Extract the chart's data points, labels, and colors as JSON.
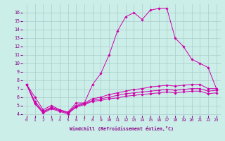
{
  "xlabel": "Windchill (Refroidissement éolien,°C)",
  "bg_color": "#cceee8",
  "grid_color": "#aacccc",
  "line_color": "#cc00aa",
  "hours": [
    0,
    1,
    2,
    3,
    4,
    5,
    6,
    7,
    8,
    9,
    10,
    11,
    12,
    13,
    14,
    15,
    16,
    17,
    18,
    19,
    20,
    21,
    22,
    23
  ],
  "temp": [
    7.5,
    6.0,
    4.5,
    5.0,
    4.5,
    4.2,
    5.3,
    5.3,
    7.5,
    8.8,
    11.0,
    13.8,
    15.5,
    16.0,
    15.2,
    16.3,
    16.5,
    16.5,
    13.0,
    12.0,
    10.5,
    10.0,
    9.5,
    7.0
  ],
  "wc2": [
    7.5,
    5.5,
    4.3,
    4.8,
    4.5,
    4.2,
    5.0,
    5.3,
    5.8,
    6.0,
    6.3,
    6.5,
    6.7,
    6.9,
    7.0,
    7.2,
    7.3,
    7.4,
    7.3,
    7.4,
    7.5,
    7.5,
    7.0,
    7.0
  ],
  "wc3": [
    7.5,
    5.3,
    4.2,
    4.7,
    4.4,
    4.1,
    4.9,
    5.2,
    5.6,
    5.8,
    6.0,
    6.2,
    6.4,
    6.5,
    6.6,
    6.7,
    6.8,
    6.9,
    6.8,
    6.9,
    7.0,
    7.0,
    6.7,
    6.8
  ],
  "wc4": [
    7.5,
    5.2,
    4.1,
    4.6,
    4.3,
    4.0,
    4.8,
    5.1,
    5.5,
    5.6,
    5.8,
    5.9,
    6.1,
    6.2,
    6.3,
    6.4,
    6.5,
    6.6,
    6.5,
    6.6,
    6.7,
    6.7,
    6.4,
    6.5
  ],
  "ylim": [
    3.8,
    17.0
  ],
  "xlim": [
    -0.5,
    23.5
  ],
  "yticks": [
    4,
    5,
    6,
    7,
    8,
    9,
    10,
    11,
    12,
    13,
    14,
    15,
    16
  ],
  "xticks": [
    0,
    1,
    2,
    3,
    4,
    5,
    6,
    7,
    8,
    9,
    10,
    11,
    12,
    13,
    14,
    15,
    16,
    17,
    18,
    19,
    20,
    21,
    22,
    23
  ]
}
